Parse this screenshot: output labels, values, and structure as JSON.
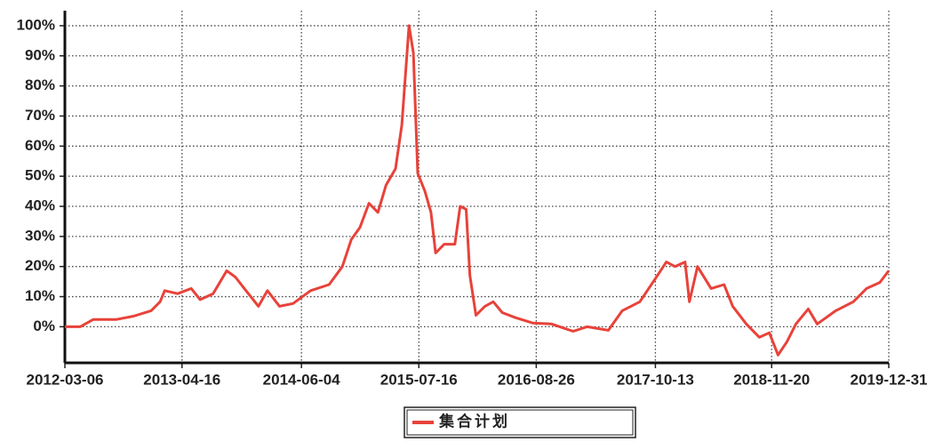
{
  "chart_data": {
    "type": "line",
    "x": [
      "2012-03-06",
      "2012-04-28",
      "2012-06-12",
      "2012-08-30",
      "2012-10-30",
      "2012-12-30",
      "2013-01-30",
      "2013-02-15",
      "2013-04-01",
      "2013-05-18",
      "2013-06-18",
      "2013-08-02",
      "2013-09-18",
      "2013-10-18",
      "2013-11-18",
      "2014-01-06",
      "2014-02-06",
      "2014-03-20",
      "2014-05-06",
      "2014-07-06",
      "2014-09-08",
      "2014-10-24",
      "2014-11-24",
      "2014-12-24",
      "2015-01-24",
      "2015-02-24",
      "2015-03-24",
      "2015-04-26",
      "2015-05-18",
      "2015-06-12",
      "2015-06-27",
      "2015-07-12",
      "2015-08-06",
      "2015-08-27",
      "2015-09-12",
      "2015-10-12",
      "2015-11-18",
      "2015-12-06",
      "2015-12-27",
      "2016-01-09",
      "2016-01-30",
      "2016-03-01",
      "2016-03-30",
      "2016-04-30",
      "2016-06-15",
      "2016-08-15",
      "2016-10-18",
      "2017-01-01",
      "2017-02-18",
      "2017-05-03",
      "2017-06-20",
      "2017-08-20",
      "2017-10-20",
      "2017-11-20",
      "2017-12-20",
      "2018-01-24",
      "2018-02-08",
      "2018-03-08",
      "2018-04-24",
      "2018-06-08",
      "2018-07-08",
      "2018-08-24",
      "2018-10-08",
      "2018-11-12",
      "2018-12-12",
      "2019-01-12",
      "2019-02-12",
      "2019-03-27",
      "2019-04-27",
      "2019-06-30",
      "2019-08-30",
      "2019-10-15",
      "2019-11-30",
      "2019-12-31"
    ],
    "series": [
      {
        "name": "集合计划",
        "color": "#e8423a",
        "values": [
          0,
          0,
          2.4,
          2.4,
          3.5,
          5.3,
          8.3,
          12,
          11,
          12.7,
          9,
          11,
          18.6,
          16.5,
          12.7,
          6.8,
          12,
          6.8,
          7.7,
          12,
          14,
          20,
          29,
          33,
          41,
          38,
          47,
          52.5,
          67,
          100,
          91,
          51,
          45,
          38,
          24.5,
          27.4,
          27.4,
          40,
          39,
          17,
          3.8,
          6.8,
          8.3,
          4.7,
          3,
          1.2,
          0.9,
          -1.5,
          0,
          -1.2,
          5.3,
          8.3,
          17,
          21.5,
          20,
          21.5,
          8.3,
          20,
          12.7,
          14,
          6.8,
          0.9,
          -3.5,
          -2,
          -9.4,
          -5,
          0.9,
          5.9,
          0.9,
          5.3,
          8.3,
          12.7,
          14.7,
          18.6
        ]
      }
    ],
    "xlim": [
      "2012-03-06",
      "2019-12-31"
    ],
    "xticks": [
      "2012-03-06",
      "2013-04-16",
      "2014-06-04",
      "2015-07-16",
      "2016-08-26",
      "2017-10-13",
      "2018-11-20",
      "2019-12-31"
    ],
    "ylim": [
      -12,
      105
    ],
    "yticks": [
      {
        "value": 0,
        "label": "0%"
      },
      {
        "value": 10,
        "label": "10%"
      },
      {
        "value": 20,
        "label": "20%"
      },
      {
        "value": 30,
        "label": "30%"
      },
      {
        "value": 40,
        "label": "40%"
      },
      {
        "value": 50,
        "label": "50%"
      },
      {
        "value": 60,
        "label": "60%"
      },
      {
        "value": 70,
        "label": "70%"
      },
      {
        "value": 80,
        "label": "80%"
      },
      {
        "value": 90,
        "label": "90%"
      },
      {
        "value": 100,
        "label": "100%"
      }
    ],
    "grid": true,
    "legend": "bottom"
  }
}
